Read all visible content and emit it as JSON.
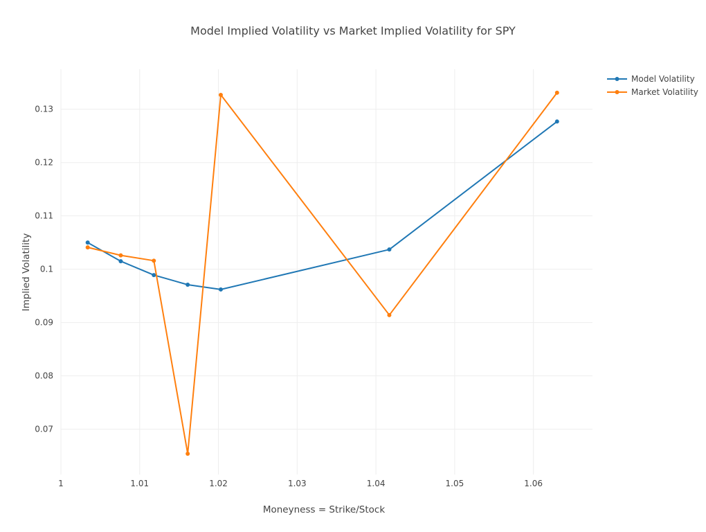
{
  "chart_data": {
    "type": "line",
    "title": "Model Implied Volatility vs Market Implied Volatility for SPY",
    "xlabel": "Moneyness = Strike/Stock",
    "ylabel": "Implied Volatility",
    "xlim": [
      1.0,
      1.0675
    ],
    "ylim": [
      0.0615,
      0.1375
    ],
    "xticks": [
      1,
      1.01,
      1.02,
      1.03,
      1.04,
      1.05,
      1.06
    ],
    "xtick_labels": [
      "1",
      "1.01",
      "1.02",
      "1.03",
      "1.04",
      "1.05",
      "1.06"
    ],
    "yticks": [
      0.07,
      0.08,
      0.09,
      0.1,
      0.11,
      0.12,
      0.13
    ],
    "ytick_labels": [
      "0.07",
      "0.08",
      "0.09",
      "0.1",
      "0.11",
      "0.12",
      "0.13"
    ],
    "grid": true,
    "legend_position": "top-right",
    "series": [
      {
        "name": "Model Volatility",
        "color": "#1f77b4",
        "x": [
          1.0034,
          1.0076,
          1.0118,
          1.0161,
          1.0203,
          1.0417,
          1.063
        ],
        "y": [
          0.105,
          0.1015,
          0.0989,
          0.0971,
          0.0962,
          0.1037,
          0.1277
        ]
      },
      {
        "name": "Market Volatility",
        "color": "#ff7f0e",
        "x": [
          1.0034,
          1.0076,
          1.0118,
          1.0161,
          1.0203,
          1.0417,
          1.063
        ],
        "y": [
          0.1041,
          0.1026,
          0.1016,
          0.0654,
          0.1327,
          0.0914,
          0.1331
        ]
      }
    ]
  }
}
